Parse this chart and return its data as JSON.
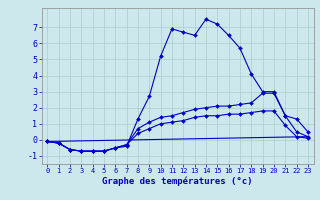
{
  "xlabel": "Graphe des températures (°c)",
  "background_color": "#cce8ec",
  "grid_color": "#aacccc",
  "line_color": "#0000cc",
  "xlim": [
    -0.5,
    23.5
  ],
  "ylim": [
    -1.5,
    8.2
  ],
  "xticks": [
    0,
    1,
    2,
    3,
    4,
    5,
    6,
    7,
    8,
    9,
    10,
    11,
    12,
    13,
    14,
    15,
    16,
    17,
    18,
    19,
    20,
    21,
    22,
    23
  ],
  "yticks": [
    -1,
    0,
    1,
    2,
    3,
    4,
    5,
    6,
    7
  ],
  "curve1_x": [
    0,
    1,
    2,
    3,
    4,
    5,
    6,
    7,
    8,
    9,
    10,
    11,
    12,
    13,
    14,
    15,
    16,
    17,
    18,
    19,
    20,
    21,
    22,
    23
  ],
  "curve1_y": [
    -0.1,
    -0.2,
    -0.6,
    -0.7,
    -0.7,
    -0.7,
    -0.5,
    -0.4,
    1.3,
    2.7,
    5.2,
    6.9,
    6.7,
    6.5,
    7.5,
    7.2,
    6.5,
    5.7,
    4.1,
    3.0,
    3.0,
    1.5,
    1.3,
    0.5
  ],
  "curve2_x": [
    0,
    1,
    2,
    3,
    4,
    5,
    6,
    7,
    8,
    9,
    10,
    11,
    12,
    13,
    14,
    15,
    16,
    17,
    18,
    19,
    20,
    21,
    22,
    23
  ],
  "curve2_y": [
    -0.1,
    -0.2,
    -0.6,
    -0.7,
    -0.7,
    -0.7,
    -0.5,
    -0.3,
    0.7,
    1.1,
    1.4,
    1.5,
    1.7,
    1.9,
    2.0,
    2.1,
    2.1,
    2.2,
    2.3,
    2.9,
    2.9,
    1.5,
    0.5,
    0.2
  ],
  "curve3_x": [
    0,
    1,
    2,
    3,
    4,
    5,
    6,
    7,
    8,
    9,
    10,
    11,
    12,
    13,
    14,
    15,
    16,
    17,
    18,
    19,
    20,
    21,
    22,
    23
  ],
  "curve3_y": [
    -0.1,
    -0.2,
    -0.6,
    -0.7,
    -0.7,
    -0.7,
    -0.5,
    -0.3,
    0.4,
    0.7,
    1.0,
    1.1,
    1.2,
    1.4,
    1.5,
    1.5,
    1.6,
    1.6,
    1.7,
    1.8,
    1.8,
    0.9,
    0.2,
    0.1
  ],
  "curve4_x": [
    0,
    23
  ],
  "curve4_y": [
    -0.1,
    0.2
  ],
  "xlabel_fontsize": 6.5,
  "tick_fontsize_x": 5.0,
  "tick_fontsize_y": 6.0
}
